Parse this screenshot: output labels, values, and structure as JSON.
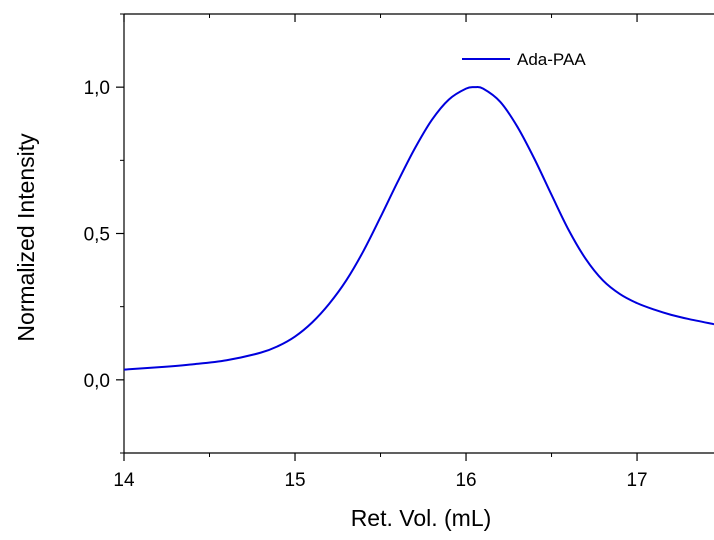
{
  "chart_data": {
    "type": "line",
    "title": "",
    "xlabel": "Ret. Vol. (mL)",
    "ylabel": "Normalized Intensity",
    "xlim": [
      14,
      17.45
    ],
    "ylim": [
      -0.25,
      1.25
    ],
    "x_ticks": [
      14,
      15,
      16,
      17
    ],
    "x_tick_labels": [
      "14",
      "15",
      "16",
      "17"
    ],
    "y_ticks": [
      0.0,
      0.5,
      1.0
    ],
    "y_tick_labels": [
      "0,0",
      "0,5",
      "1,0"
    ],
    "grid": false,
    "legend_position": "top-right",
    "series": [
      {
        "name": "Ada-PAA",
        "color": "#0000dd",
        "x": [
          14.0,
          14.2,
          14.4,
          14.6,
          14.8,
          14.9,
          15.0,
          15.1,
          15.2,
          15.3,
          15.4,
          15.5,
          15.6,
          15.7,
          15.8,
          15.9,
          16.0,
          16.05,
          16.1,
          16.2,
          16.3,
          16.4,
          16.5,
          16.6,
          16.7,
          16.8,
          16.9,
          17.0,
          17.1,
          17.2,
          17.3,
          17.45
        ],
        "values": [
          0.035,
          0.043,
          0.053,
          0.067,
          0.093,
          0.115,
          0.148,
          0.196,
          0.26,
          0.34,
          0.44,
          0.556,
          0.676,
          0.79,
          0.888,
          0.958,
          0.995,
          1.0,
          0.995,
          0.95,
          0.865,
          0.755,
          0.632,
          0.512,
          0.413,
          0.34,
          0.293,
          0.262,
          0.24,
          0.222,
          0.208,
          0.19
        ]
      }
    ]
  }
}
